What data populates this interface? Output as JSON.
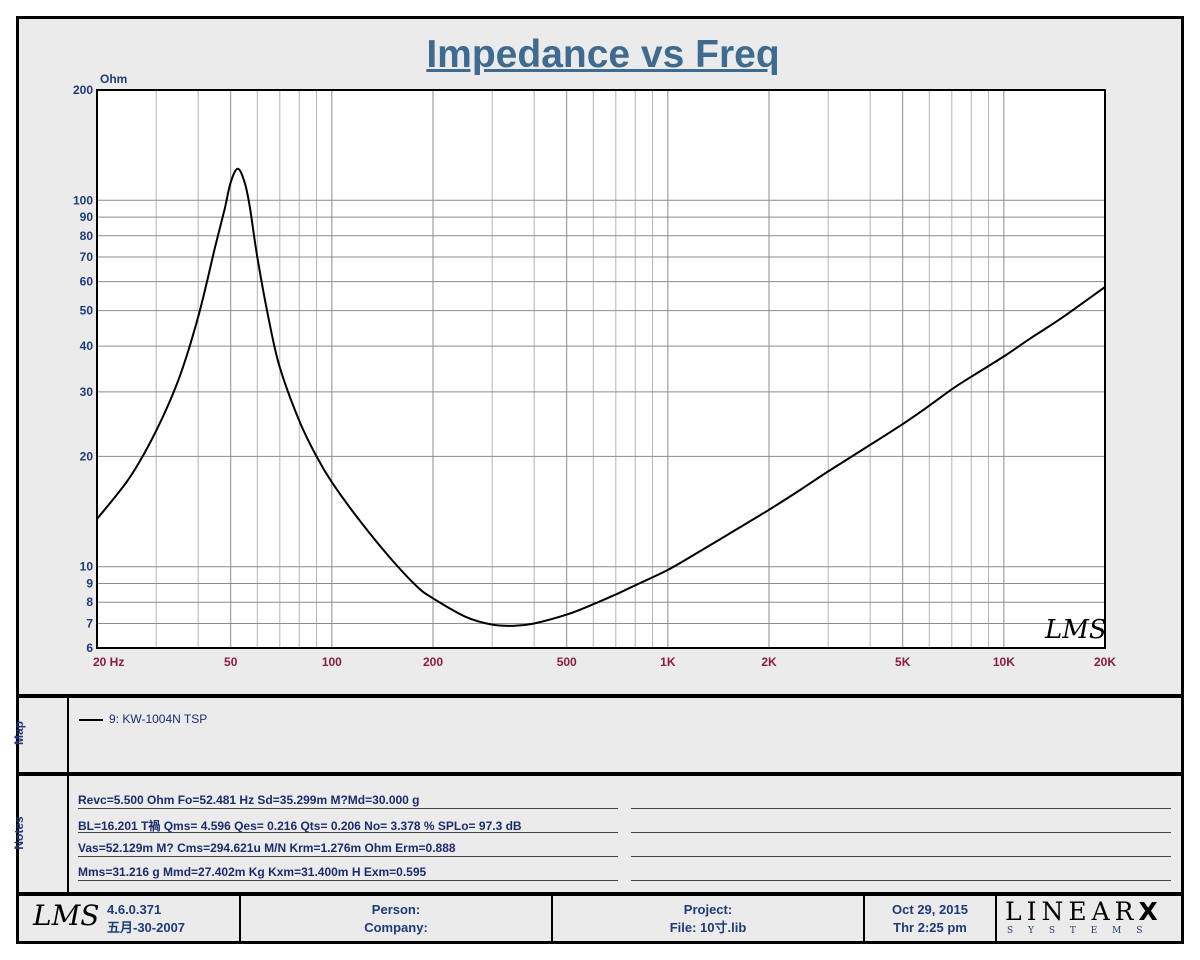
{
  "chart_data": {
    "type": "line",
    "title": "Impedance vs Freq",
    "ylabel": "Ohm",
    "xlabel": "",
    "x_scale": "log",
    "y_scale": "log",
    "xlim": [
      20,
      20000
    ],
    "ylim": [
      6,
      200
    ],
    "grid": true,
    "x_ticks": [
      "20  Hz",
      "50",
      "100",
      "200",
      "500",
      "1K",
      "2K",
      "5K",
      "10K",
      "20K"
    ],
    "y_ticks": [
      "200",
      "100",
      "90",
      "80",
      "70",
      "60",
      "50",
      "40",
      "30",
      "20",
      "10",
      "9",
      "8",
      "7",
      "6"
    ],
    "series": [
      {
        "name": "9: KW-1004N TSP",
        "color": "#000000",
        "x": [
          20,
          25,
          30,
          35,
          40,
          45,
          48,
          50,
          52.5,
          55,
          57,
          60,
          65,
          70,
          80,
          90,
          100,
          120,
          150,
          180,
          200,
          250,
          300,
          350,
          400,
          500,
          600,
          700,
          800,
          1000,
          1200,
          1500,
          2000,
          2500,
          3000,
          4000,
          5000,
          6000,
          7000,
          8000,
          10000,
          12000,
          15000,
          20000
        ],
        "y": [
          13.5,
          17.5,
          23.5,
          32.5,
          48,
          75,
          95,
          112,
          122,
          112,
          96,
          70,
          47,
          35,
          25,
          20,
          17,
          13.5,
          10.5,
          8.8,
          8.2,
          7.3,
          6.95,
          6.9,
          7.0,
          7.4,
          7.9,
          8.4,
          8.9,
          9.8,
          10.8,
          12.2,
          14.3,
          16.3,
          18.2,
          21.5,
          24.5,
          27.5,
          30.5,
          33,
          37.5,
          42,
          48,
          58
        ]
      }
    ],
    "watermark": "LMS"
  },
  "map": {
    "label": "Map",
    "legend_entry": "9: KW-1004N TSP"
  },
  "notes": {
    "label": "Notes",
    "lines": [
      "Revc=5.500 Ohm  Fo=52.481 Hz  Sd=35.299m M?Md=30.000 g",
      "BL=16.201 T禍  Qms= 4.596  Qes= 0.216  Qts= 0.206  No= 3.378 %  SPLo= 97.3 dB",
      "Vas=52.129m M? Cms=294.621u M/N  Krm=1.276m Ohm  Erm=0.888",
      "Mms=31.216 g  Mmd=27.402m Kg  Kxm=31.400m H  Exm=0.595"
    ]
  },
  "footer": {
    "logo": "LMS",
    "version": "4.6.0.371",
    "version_date": "五月-30-2007",
    "person_label": "Person:",
    "company_label": "Company:",
    "project_label": "Project:",
    "file_label": "File: 10寸.lib",
    "date": "Oct 29, 2015",
    "time": "Thr  2:25 pm",
    "brand": "LINEAR",
    "brand_x": "X",
    "brand_sub": "S Y S T E M S"
  }
}
